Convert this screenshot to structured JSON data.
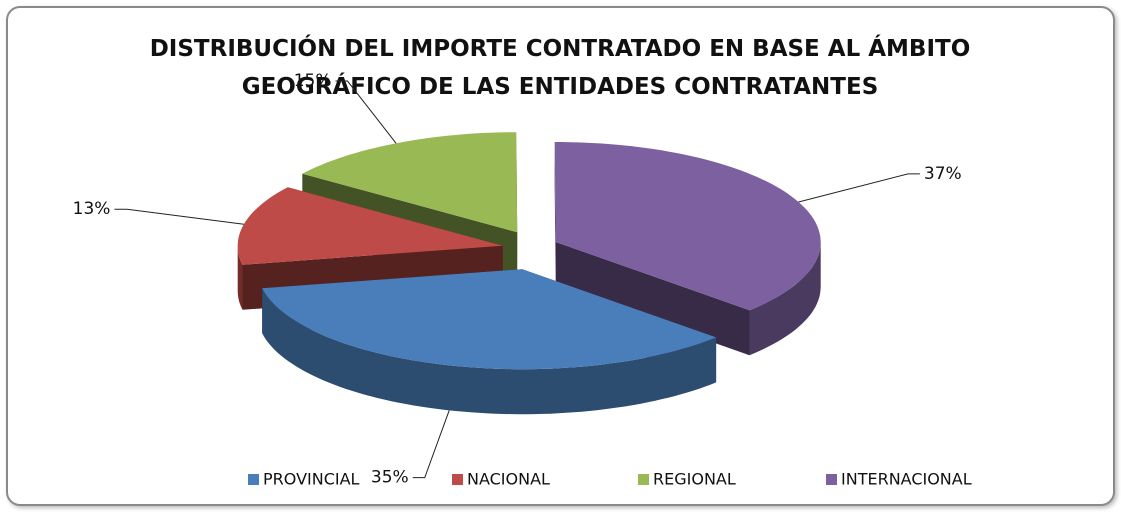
{
  "chart_data": {
    "type": "pie3d",
    "title": "DISTRIBUCIÓN DEL IMPORTE CONTRATADO EN BASE AL ÁMBITO GEOGRÁFICO DE LAS ENTIDADES CONTRATANTES",
    "categories": [
      "PROVINCIAL",
      "NACIONAL",
      "REGIONAL",
      "INTERNACIONAL"
    ],
    "values": [
      35,
      13,
      15,
      37
    ],
    "value_labels": [
      "35%",
      "13%",
      "15%",
      "37%"
    ],
    "colors": [
      "#4a7ebb",
      "#be4b48",
      "#98b954",
      "#7d60a0"
    ],
    "legend": "bottom"
  }
}
